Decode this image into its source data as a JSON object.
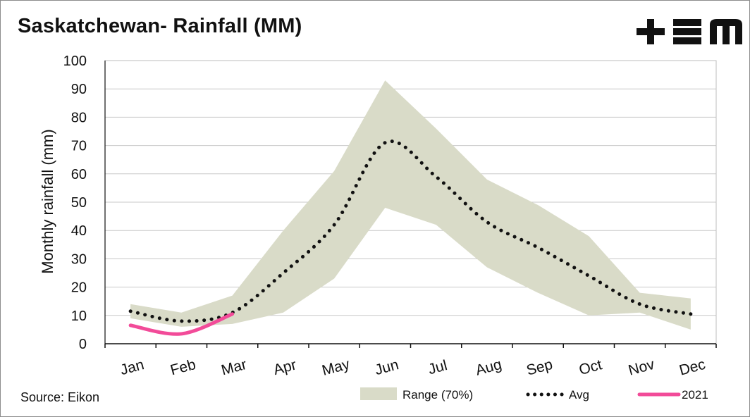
{
  "title": "Saskatchewan- Rainfall (MM)",
  "source": "Source: Eikon",
  "logo": {
    "icon": "tem-logo-icon",
    "color": "#111111"
  },
  "colors": {
    "range": "#d9dbc8",
    "avg": "#111111",
    "year2021": "#f24b99",
    "grid": "#c8c8c8"
  },
  "chart_data": {
    "type": "area",
    "title": "Saskatchewan- Rainfall (MM)",
    "xlabel": "",
    "ylabel": "Monthly rainfall (mm)",
    "ylim": [
      0,
      100
    ],
    "yticks": [
      0,
      10,
      20,
      30,
      40,
      50,
      60,
      70,
      80,
      90,
      100
    ],
    "categories": [
      "Jan",
      "Feb",
      "Mar",
      "Apr",
      "May",
      "Jun",
      "Jul",
      "Aug",
      "Sep",
      "Oct",
      "Nov",
      "Dec"
    ],
    "grid": "horizontal",
    "legend_position": "bottom",
    "series": [
      {
        "name": "Range (70%)",
        "kind": "band",
        "low": [
          9,
          6,
          7,
          11,
          23,
          48,
          42,
          27,
          18,
          10,
          11,
          5
        ],
        "high": [
          14,
          11,
          17,
          40,
          61,
          93,
          76,
          58,
          49,
          38,
          18,
          16
        ]
      },
      {
        "name": "Avg",
        "kind": "line",
        "style": "dotted",
        "values": [
          11.5,
          8,
          11,
          25,
          42,
          71,
          59,
          43,
          34,
          24,
          14,
          10.5
        ]
      },
      {
        "name": "2021",
        "kind": "line",
        "style": "solid",
        "values": [
          6.5,
          3.5,
          10.5,
          null,
          null,
          null,
          null,
          null,
          null,
          null,
          null,
          null
        ]
      }
    ]
  }
}
